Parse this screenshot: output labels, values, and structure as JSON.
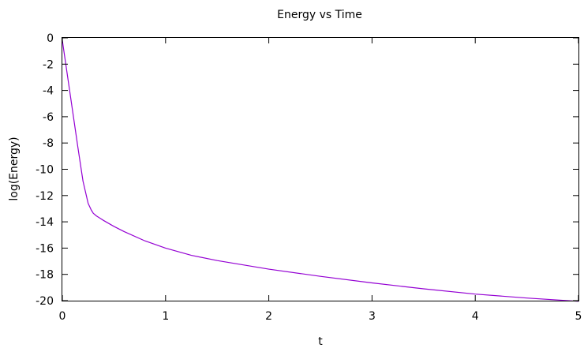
{
  "chart_data": {
    "type": "line",
    "title": "Energy vs Time",
    "xlabel": "t",
    "ylabel": "log(Energy)",
    "xlim": [
      0,
      5
    ],
    "ylim": [
      -20,
      0
    ],
    "x_ticks": [
      {
        "value": 0,
        "label": "0"
      },
      {
        "value": 1,
        "label": "1"
      },
      {
        "value": 2,
        "label": "2"
      },
      {
        "value": 3,
        "label": "3"
      },
      {
        "value": 4,
        "label": "4"
      },
      {
        "value": 5,
        "label": "5"
      }
    ],
    "y_ticks": [
      {
        "value": 0,
        "label": "0"
      },
      {
        "value": -2,
        "label": "-2"
      },
      {
        "value": -4,
        "label": "-4"
      },
      {
        "value": -6,
        "label": "-6"
      },
      {
        "value": -8,
        "label": "-8"
      },
      {
        "value": -10,
        "label": "-10"
      },
      {
        "value": -12,
        "label": "-12"
      },
      {
        "value": -14,
        "label": "-14"
      },
      {
        "value": -16,
        "label": "-16"
      },
      {
        "value": -18,
        "label": "-18"
      },
      {
        "value": -20,
        "label": "-20"
      }
    ],
    "grid": false,
    "legend": "none",
    "series": [
      {
        "color": "#9400d3",
        "x": [
          0,
          0.05,
          0.1,
          0.15,
          0.2,
          0.25,
          0.28,
          0.3,
          0.33,
          0.4,
          0.5,
          0.6,
          0.8,
          1.0,
          1.25,
          1.5,
          2.0,
          2.5,
          3.0,
          3.5,
          4.0,
          4.5,
          5.0
        ],
        "values": [
          -0.2,
          -2.9,
          -5.6,
          -8.3,
          -10.9,
          -12.6,
          -13.1,
          -13.35,
          -13.55,
          -13.9,
          -14.35,
          -14.75,
          -15.45,
          -16.0,
          -16.55,
          -16.95,
          -17.6,
          -18.15,
          -18.65,
          -19.1,
          -19.5,
          -19.8,
          -20.05
        ]
      }
    ]
  }
}
